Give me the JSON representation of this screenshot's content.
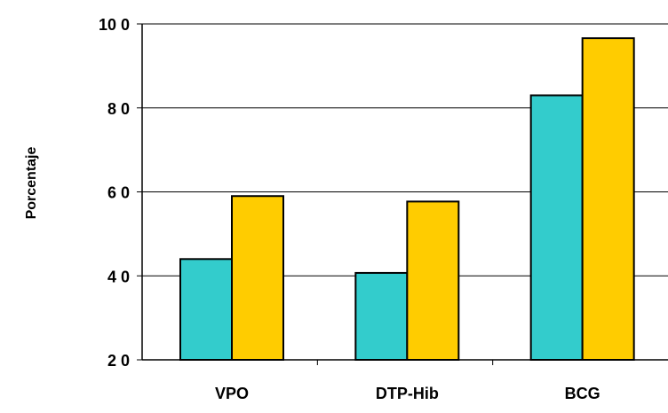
{
  "chart_data": {
    "type": "bar",
    "ylabel": "Porcentaje",
    "xlabel": "",
    "categories": [
      "VPO",
      "DTP-Hib",
      "BCG"
    ],
    "series": [
      {
        "values": [
          44,
          40.7,
          83
        ],
        "color": "#33CCCC"
      },
      {
        "values": [
          59,
          57.7,
          96.6
        ],
        "color": "#FFCC00"
      }
    ],
    "ylim": [
      20,
      100
    ],
    "yticks": [
      20,
      40,
      60,
      80,
      100
    ],
    "ytick_labels": [
      "2 0",
      "4 0",
      "6 0",
      "8 0",
      "10 0"
    ],
    "grid": true
  }
}
